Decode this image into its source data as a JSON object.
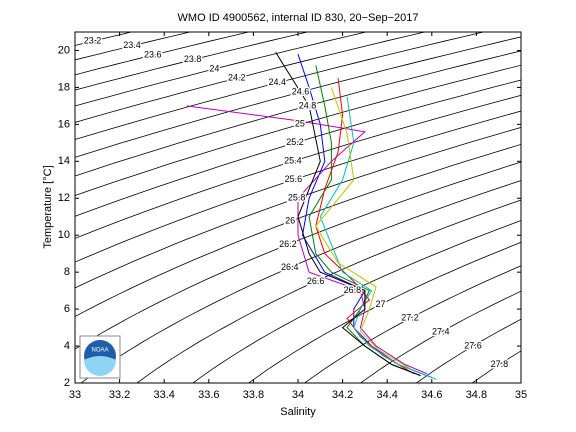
{
  "chart_data": {
    "type": "line",
    "title": "WMO ID 4900562, internal ID 830, 20−Sep−2017",
    "x_label": "Salinity",
    "y_label": "Temperature [°C]",
    "xlim": [
      33,
      35
    ],
    "ylim": [
      2,
      21
    ],
    "xticks": [
      33,
      33.2,
      33.4,
      33.6,
      33.8,
      34,
      34.2,
      34.4,
      34.6,
      34.8,
      35
    ],
    "yticks": [
      2,
      4,
      6,
      8,
      10,
      12,
      14,
      16,
      18,
      20
    ],
    "contour_levels": [
      23.2,
      23.4,
      23.6,
      23.8,
      24,
      24.2,
      24.4,
      24.6,
      24.8,
      25,
      25.2,
      25.4,
      25.6,
      25.8,
      26,
      26.2,
      26.4,
      26.6,
      26.8,
      27,
      27.2,
      27.4,
      27.6,
      27.8
    ],
    "contour_color": "#000000",
    "logo_text": "NOAA",
    "series": [
      {
        "color": "#0000ff",
        "x": [
          34.0,
          34.05,
          34.1,
          34.12,
          34.05,
          34.02,
          34.12,
          34.3,
          34.25,
          34.25,
          34.33,
          34.45,
          34.6
        ],
        "values": [
          19.8,
          18,
          16,
          14,
          12,
          10,
          8,
          7,
          6,
          5,
          4,
          3,
          2.3
        ]
      },
      {
        "color": "#008000",
        "x": [
          34.08,
          34.12,
          34.15,
          34.15,
          34.05,
          34.08,
          34.15,
          34.32,
          34.28,
          34.22,
          34.3,
          34.42,
          34.55
        ],
        "values": [
          19.2,
          17,
          15,
          13,
          11,
          9,
          8,
          7,
          6,
          5,
          4,
          3,
          2.4
        ]
      },
      {
        "color": "#ff0000",
        "x": [
          34.18,
          34.2,
          34.18,
          34.12,
          34.08,
          34.12,
          34.25,
          34.32,
          34.22,
          34.28,
          34.38,
          34.52
        ],
        "values": [
          18.5,
          16.5,
          14.5,
          12.5,
          10.5,
          9,
          7.5,
          6.5,
          5.5,
          4.5,
          3.5,
          2.5
        ]
      },
      {
        "color": "#00bfbf",
        "x": [
          34.22,
          34.25,
          34.2,
          34.1,
          34.15,
          34.2,
          34.33,
          34.28,
          34.25,
          34.32,
          34.45,
          34.62
        ],
        "values": [
          17.5,
          15,
          13,
          11,
          9.5,
          8,
          7,
          6,
          5,
          4,
          3,
          2.2
        ]
      },
      {
        "color": "#bf00bf",
        "x": [
          33.5,
          34.0,
          34.3,
          34.15,
          34.0,
          34.0,
          34.05,
          34.28,
          34.3,
          34.28,
          34.35,
          34.48,
          34.58
        ],
        "values": [
          17,
          16.2,
          15.6,
          14,
          12,
          10,
          8,
          7,
          6,
          5,
          4,
          3,
          2.5
        ]
      },
      {
        "color": "#000000",
        "x": [
          33.9,
          34.05,
          34.1,
          34.0,
          34.05,
          34.1,
          34.3,
          34.3,
          34.2,
          34.3,
          34.42,
          34.55
        ],
        "values": [
          19.9,
          17,
          14,
          11,
          9,
          8,
          7,
          6,
          5,
          4,
          3,
          2.4
        ]
      },
      {
        "color": "#bfbf00",
        "x": [
          34.15,
          34.22,
          34.25,
          34.08,
          34.18,
          34.35,
          34.32,
          34.28,
          34.36,
          34.5
        ],
        "values": [
          18,
          15.5,
          13,
          10.5,
          8.5,
          7.2,
          6,
          4.8,
          3.8,
          2.8
        ]
      }
    ]
  }
}
